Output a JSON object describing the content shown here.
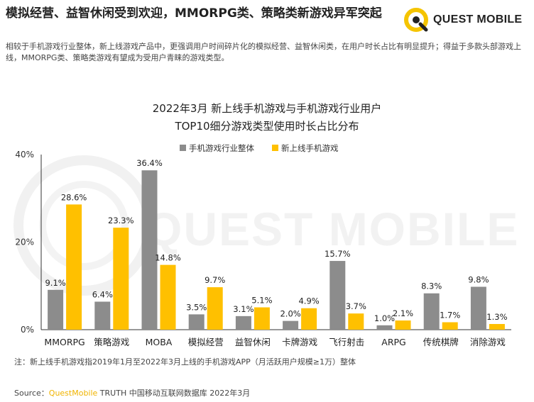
{
  "header": {
    "title": "模拟经营、益智休闲受到欢迎，MMORPG类、策略类新游戏异军突起",
    "subtitle": "相较于手机游戏行业整体，新上线游戏产品中，更强调用户时间碎片化的模拟经营、益智休闲类，在用户时长占比有明显提升；得益于多款头部游戏上线，MMORPG类、策略类游戏有望成为受用户青睐的游戏类型。"
  },
  "logo": {
    "text": "QUEST MOBILE",
    "watermark": "QUEST MOBILE"
  },
  "colors": {
    "gray": "#8c8c8c",
    "gold": "#ffc000",
    "logo_ring": "#f5c400"
  },
  "chart_data": {
    "type": "bar",
    "title_line1": "2022年3月 新上线手机游戏与手机游戏行业用户",
    "title_line2": "TOP10细分游戏类型使用时长占比分布",
    "categories": [
      "MMORPG",
      "策略游戏",
      "MOBA",
      "模拟经营",
      "益智休闲",
      "卡牌游戏",
      "飞行射击",
      "ARPG",
      "传统棋牌",
      "消除游戏"
    ],
    "series": [
      {
        "name": "手机游戏行业整体",
        "values": [
          9.1,
          6.4,
          36.4,
          3.5,
          3.1,
          2.0,
          15.7,
          1.0,
          8.3,
          9.8
        ],
        "labels": [
          "9.1%",
          "6.4%",
          "36.4%",
          "3.5%",
          "3.1%",
          "2.0%",
          "15.7%",
          "1.0%",
          "8.3%",
          "9.8%"
        ]
      },
      {
        "name": "新上线手机游戏",
        "values": [
          28.6,
          23.3,
          14.8,
          9.7,
          5.1,
          4.9,
          3.7,
          2.1,
          1.7,
          1.3
        ],
        "labels": [
          "28.6%",
          "23.3%",
          "14.8%",
          "9.7%",
          "5.1%",
          "4.9%",
          "3.7%",
          "2.1%",
          "1.7%",
          "1.3%"
        ]
      }
    ],
    "ylim": [
      0,
      40
    ],
    "yticks": [
      "0%",
      "20%",
      "40%"
    ],
    "legend_position": "top"
  },
  "footnote": "注：新上线手机游戏指2019年1月至2022年3月上线的手机游戏APP（月活跃用户规模≥1万）整体",
  "source": {
    "prefix": "Source：",
    "brand": "QuestMobile",
    "rest": " TRUTH 中国移动互联网数据库 2022年3月"
  }
}
